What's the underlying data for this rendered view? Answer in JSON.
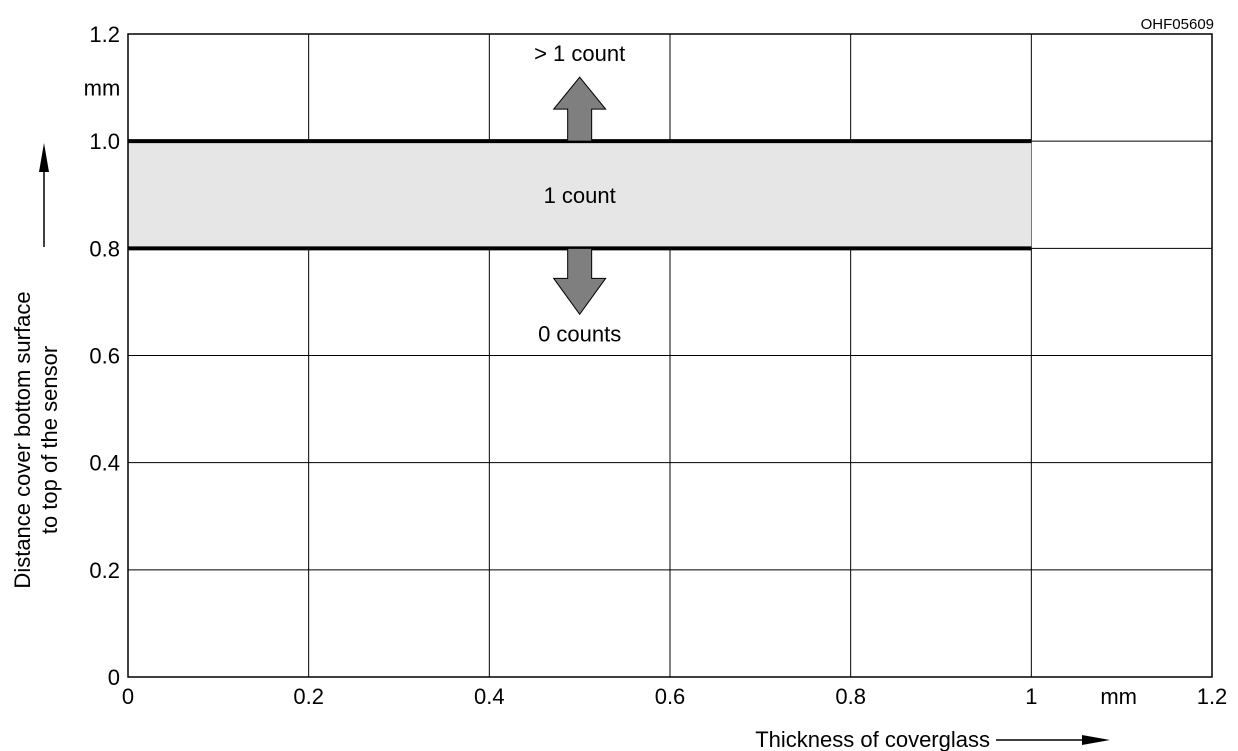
{
  "chart_data": {
    "type": "area",
    "figure_code": "OHF05609",
    "x_axis": {
      "label": "Thickness of coverglass",
      "unit": "mm",
      "range": [
        0,
        1.2
      ],
      "ticks": [
        "0",
        "0.2",
        "0.4",
        "0.6",
        "0.8",
        "1",
        "1.2"
      ],
      "tick_values": [
        0,
        0.2,
        0.4,
        0.6,
        0.8,
        1.0,
        1.2
      ]
    },
    "y_axis": {
      "label_line1": "Distance cover bottom surface",
      "label_line2": "to top of the sensor",
      "unit": "mm",
      "range": [
        0,
        1.2
      ],
      "ticks": [
        "0",
        "0.2",
        "0.4",
        "0.6",
        "0.8",
        "1.0",
        "1.2"
      ],
      "tick_values": [
        0,
        0.2,
        0.4,
        0.6,
        0.8,
        1.0,
        1.2
      ]
    },
    "grid": true,
    "band": {
      "x_range": [
        0,
        1.0
      ],
      "y_range": [
        0.8,
        1.0
      ],
      "label": "1 count",
      "fill": "#e6e6e6"
    },
    "boundaries": [
      {
        "y": 1.0,
        "x_range": [
          0,
          1.0
        ]
      },
      {
        "y": 0.8,
        "x_range": [
          0,
          1.0
        ]
      }
    ],
    "annotations": [
      {
        "text": "> 1 count",
        "direction": "up",
        "x": 0.5,
        "y_from": 1.0
      },
      {
        "text": "0 counts",
        "direction": "down",
        "x": 0.5,
        "y_from": 0.8
      }
    ],
    "arrow_color": "#7f7f7f"
  }
}
